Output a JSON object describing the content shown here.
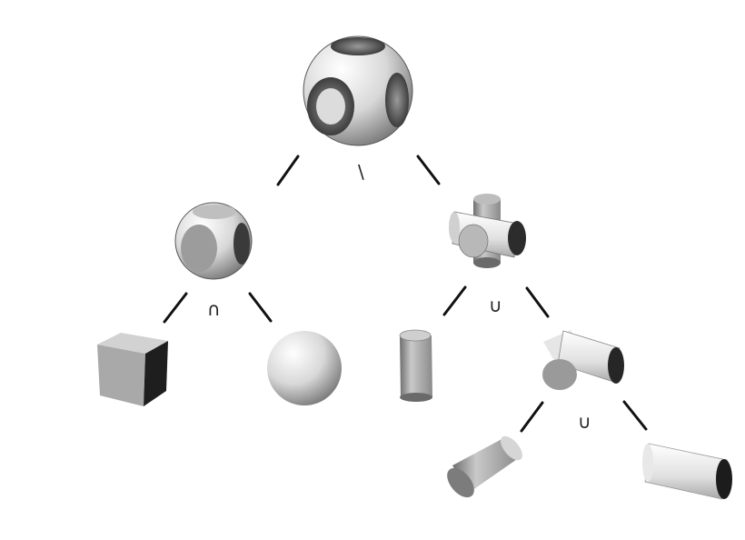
{
  "diagram": {
    "operators": {
      "difference": "\\",
      "intersection": "∩",
      "union_1": "∪",
      "union_2": "∪"
    },
    "nodes": [
      {
        "id": "root",
        "icon": "sphere-cube-difference-icon"
      },
      {
        "id": "rounded-cube",
        "icon": "rounded-cube-icon"
      },
      {
        "id": "cross-cylinders-3axis",
        "icon": "three-cylinder-cross-icon"
      },
      {
        "id": "cube",
        "icon": "cube-icon"
      },
      {
        "id": "sphere",
        "icon": "sphere-icon"
      },
      {
        "id": "cylinder-vertical",
        "icon": "cylinder-icon"
      },
      {
        "id": "cross-cylinders-2axis",
        "icon": "two-cylinder-cross-icon"
      },
      {
        "id": "cylinder-tilted",
        "icon": "cylinder-icon"
      },
      {
        "id": "cylinder-horizontal",
        "icon": "cylinder-icon"
      }
    ],
    "colors": {
      "edge": "#111111",
      "shape_light": "#f4f4f4",
      "shape_dark": "#3a3a3a"
    }
  }
}
